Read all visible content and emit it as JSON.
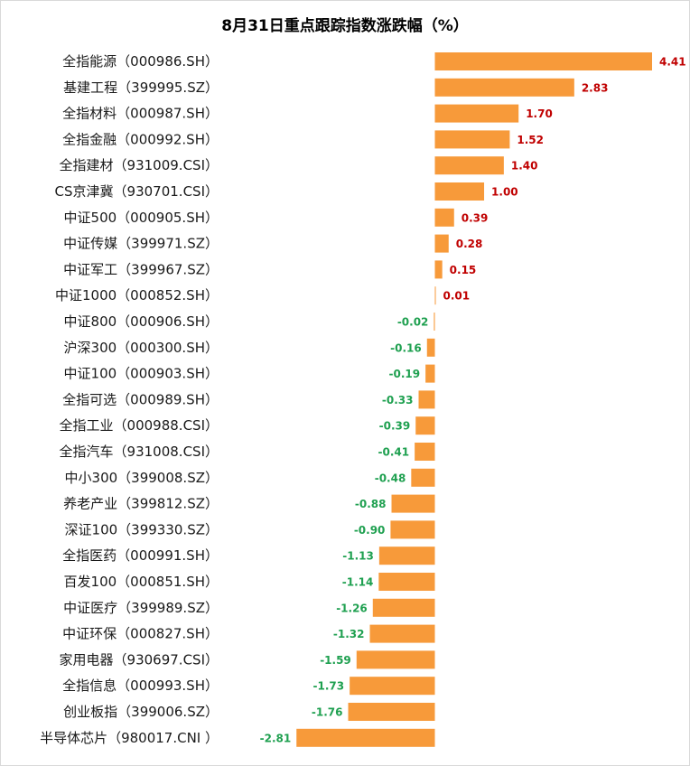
{
  "chart_data": {
    "type": "bar",
    "orientation": "horizontal",
    "title": "8月31日重点跟踪指数涨跌幅（%）",
    "categories": [
      "全指能源（000986.SH）",
      "基建工程（399995.SZ）",
      "全指材料（000987.SH）",
      "全指金融（000992.SH）",
      "全指建材（931009.CSI）",
      "CS京津冀（930701.CSI）",
      "中证500（000905.SH）",
      "中证传媒（399971.SZ）",
      "中证军工（399967.SZ）",
      "中证1000（000852.SH）",
      "中证800（000906.SH）",
      "沪深300（000300.SH）",
      "中证100（000903.SH）",
      "全指可选（000989.SH）",
      "全指工业（000988.CSI）",
      "全指汽车（931008.CSI）",
      "中小300（399008.SZ）",
      "养老产业（399812.SZ）",
      "深证100（399330.SZ）",
      "全指医药（000991.SH）",
      "百发100（000851.SH）",
      "中证医疗（399989.SZ）",
      "中证环保（000827.SH）",
      "家用电器（930697.CSI）",
      "全指信息（000993.SH）",
      "创业板指（399006.SZ）",
      "半导体芯片（980017.CNI ）"
    ],
    "values": [
      4.41,
      2.83,
      1.7,
      1.52,
      1.4,
      1.0,
      0.39,
      0.28,
      0.15,
      0.01,
      -0.02,
      -0.16,
      -0.19,
      -0.33,
      -0.39,
      -0.41,
      -0.48,
      -0.88,
      -0.9,
      -1.13,
      -1.14,
      -1.26,
      -1.32,
      -1.59,
      -1.73,
      -1.76,
      -2.81
    ],
    "value_labels": [
      "4.41",
      "2.83",
      "1.70",
      "1.52",
      "1.40",
      "1.00",
      "0.39",
      "0.28",
      "0.15",
      "0.01",
      "-0.02",
      "-0.16",
      "-0.19",
      "-0.33",
      "-0.39",
      "-0.41",
      "-0.48",
      "-0.88",
      "-0.90",
      "-1.13",
      "-1.14",
      "-1.26",
      "-1.32",
      "-1.59",
      "-1.73",
      "-1.76",
      "-2.81"
    ],
    "xlim": [
      -2.81,
      4.41
    ],
    "grid": false,
    "legend": "none",
    "bar_color": "#f79a3a",
    "positive_label_color": "#c00000",
    "negative_label_color": "#1fa050"
  }
}
